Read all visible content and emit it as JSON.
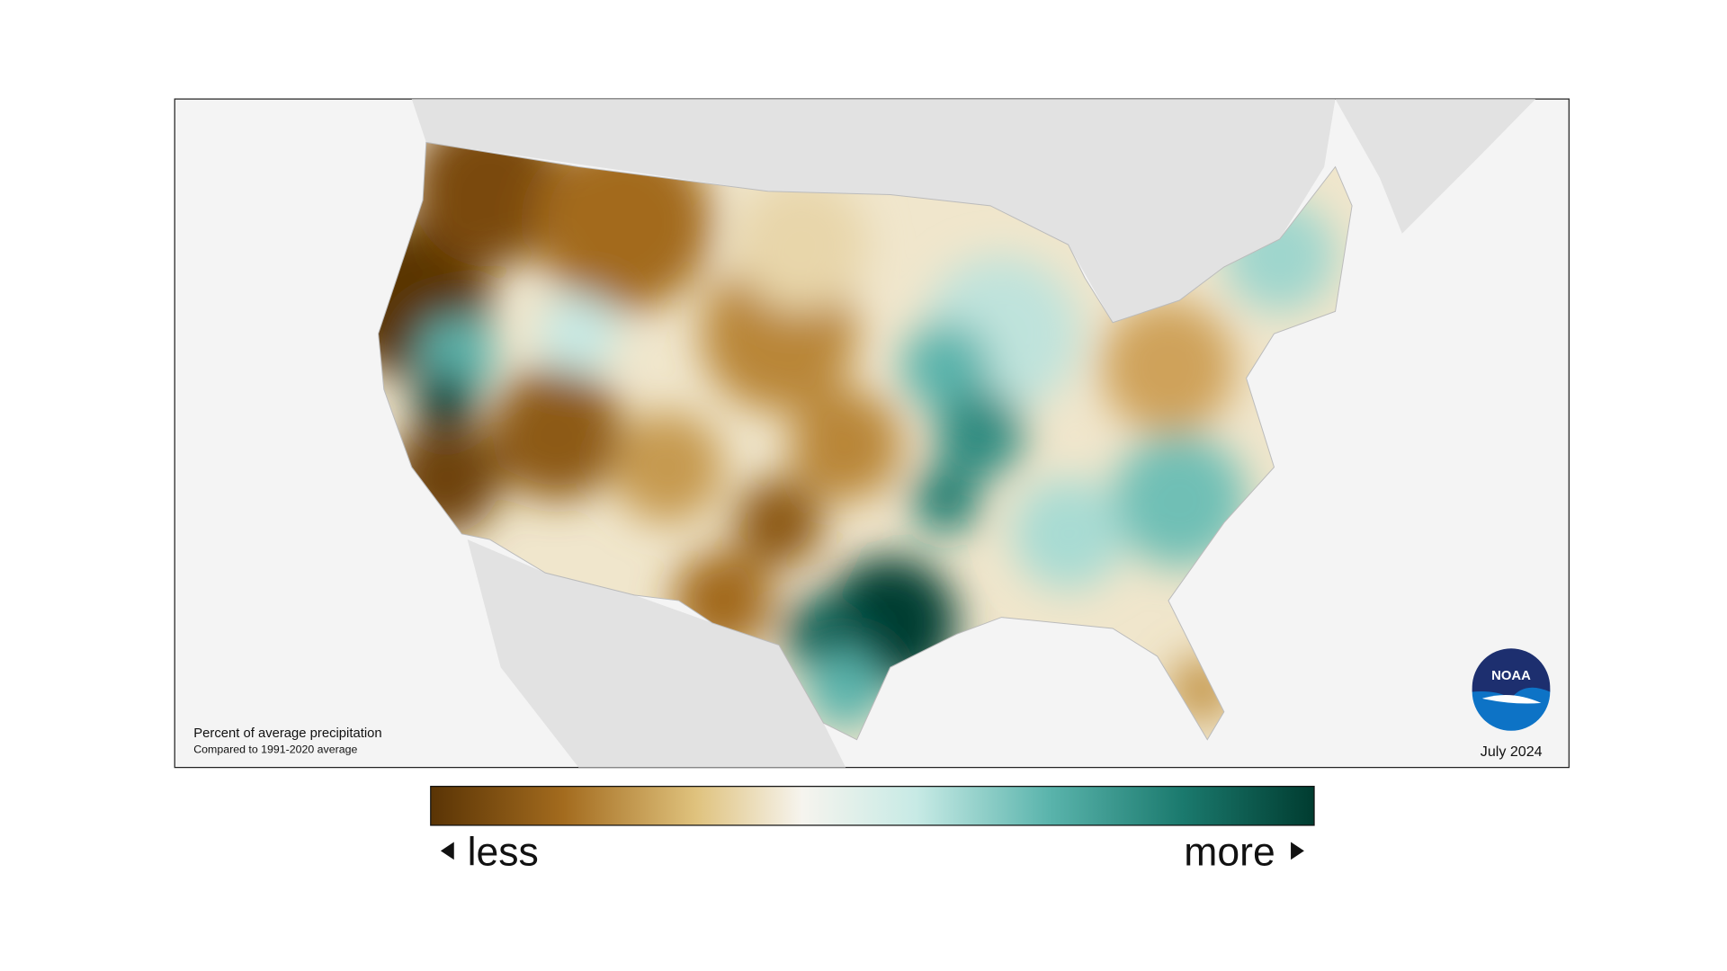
{
  "map": {
    "note_title": "Percent of average precipitation",
    "note_subtitle": "Compared to 1991-2020 average",
    "date": "July 2024",
    "logo": "NOAA"
  },
  "legend": {
    "low": "less",
    "high": "more"
  }
}
